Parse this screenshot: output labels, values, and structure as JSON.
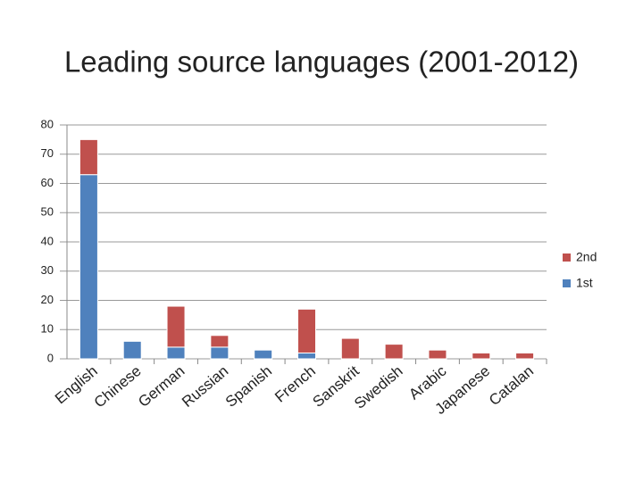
{
  "chart_data": {
    "type": "stacked-bar",
    "title": "Leading source languages (2001-2012)",
    "categories": [
      "English",
      "Chinese",
      "German",
      "Russian",
      "Spanish",
      "French",
      "Sanskrit",
      "Swedish",
      "Arabic",
      "Japanese",
      "Catalan"
    ],
    "series": [
      {
        "name": "1st",
        "color": "#4f81bd",
        "values": [
          63,
          6,
          4,
          4,
          3,
          2,
          0,
          0,
          0,
          0,
          0
        ]
      },
      {
        "name": "2nd",
        "color": "#c0504d",
        "values": [
          12,
          0,
          14,
          4,
          0,
          15,
          7,
          5,
          3,
          2,
          2
        ]
      }
    ],
    "ylim": [
      0,
      80
    ],
    "yticks": [
      0,
      10,
      20,
      30,
      40,
      50,
      60,
      70,
      80
    ],
    "grid": true,
    "legend": "right"
  }
}
